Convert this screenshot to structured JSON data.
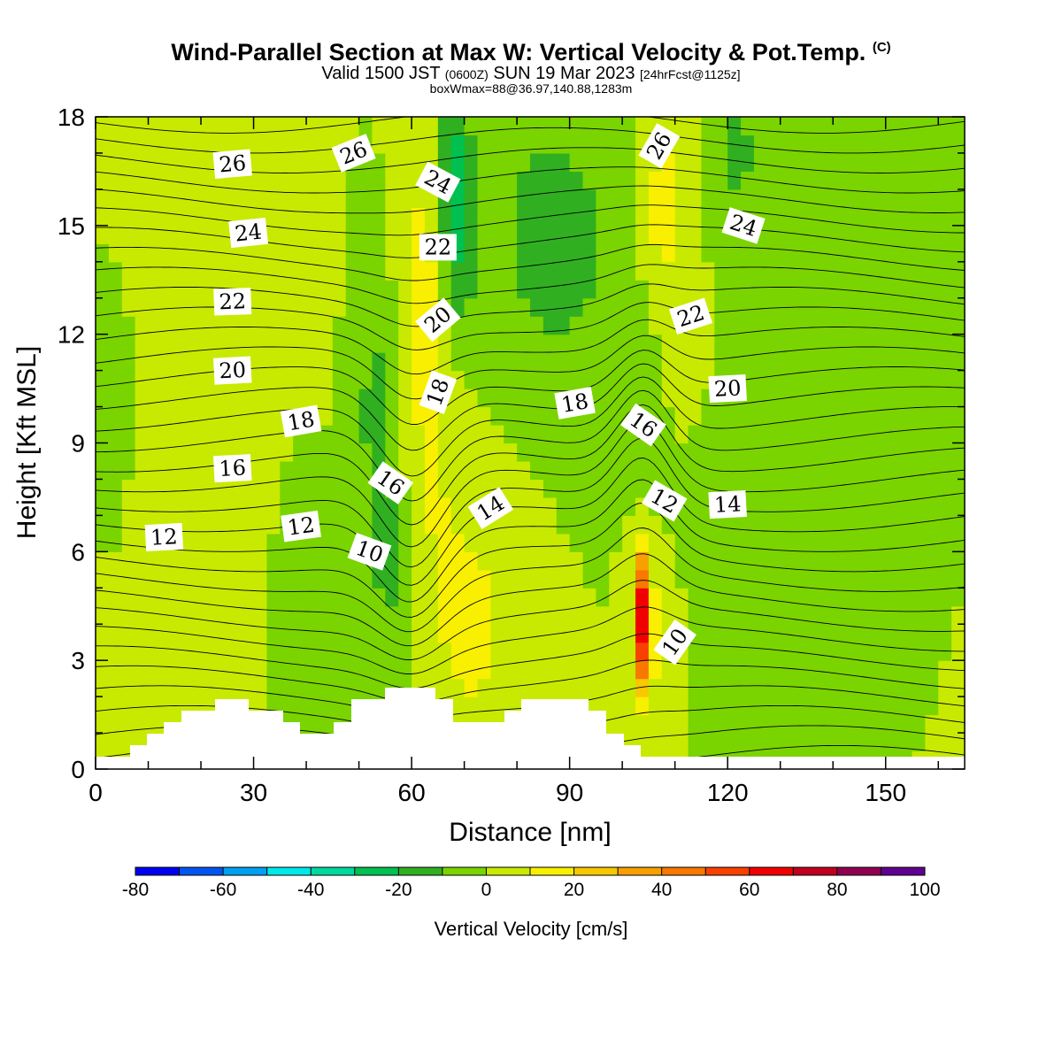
{
  "header": {
    "title": "Wind-Parallel Section at Max W: Vertical Velocity & Pot.Temp.",
    "copyright_mark": "(C)",
    "valid_prefix": "Valid 1500 JST",
    "valid_utc": "(0600Z)",
    "valid_date": "SUN 19 Mar 2023",
    "forecast": "[24hrFcst@1125z]",
    "box_info": "boxWmax=88@36.97,140.88,1283m"
  },
  "colors": {
    "scale": [
      "#0000f0",
      "#0055f0",
      "#00a0f0",
      "#00e8e8",
      "#00d8a0",
      "#00c050",
      "#30b020",
      "#7ad400",
      "#c8ea00",
      "#f8f000",
      "#f8c800",
      "#f8a000",
      "#f87800",
      "#f84000",
      "#f00000",
      "#c00020",
      "#900050",
      "#600090"
    ],
    "terrain": "#ffffff"
  },
  "chart_data": {
    "type": "contour",
    "xlabel": "Distance [nm]",
    "ylabel": "Height [Kft MSL]",
    "xlim": [
      0,
      165
    ],
    "ylim": [
      0,
      18
    ],
    "x_ticks": [
      "0",
      "30",
      "60",
      "90",
      "120",
      "150"
    ],
    "y_ticks": [
      "0",
      "3",
      "6",
      "9",
      "12",
      "15",
      "18"
    ],
    "colorbar": {
      "label": "Vertical Velocity [cm/s]",
      "range": [
        -80,
        100
      ],
      "interval": 10,
      "tick_labels": [
        "-80",
        "-60",
        "-40",
        "-20",
        "0",
        "20",
        "40",
        "60",
        "80",
        "100"
      ]
    },
    "contour_labels": [
      {
        "text": "26",
        "x": 26,
        "y": 16.7,
        "rot": -5
      },
      {
        "text": "26",
        "x": 49,
        "y": 17.0,
        "rot": -22
      },
      {
        "text": "24",
        "x": 65,
        "y": 16.2,
        "rot": 28
      },
      {
        "text": "26",
        "x": 107,
        "y": 17.2,
        "rot": -60
      },
      {
        "text": "24",
        "x": 29,
        "y": 14.8,
        "rot": -6
      },
      {
        "text": "24",
        "x": 123,
        "y": 15.0,
        "rot": 18
      },
      {
        "text": "22",
        "x": 65,
        "y": 14.4,
        "rot": 0
      },
      {
        "text": "22",
        "x": 26,
        "y": 12.9,
        "rot": -2
      },
      {
        "text": "22",
        "x": 113,
        "y": 12.5,
        "rot": -18
      },
      {
        "text": "20",
        "x": 65,
        "y": 12.4,
        "rot": -40
      },
      {
        "text": "20",
        "x": 26,
        "y": 11.0,
        "rot": -3
      },
      {
        "text": "20",
        "x": 120,
        "y": 10.5,
        "rot": -3
      },
      {
        "text": "18",
        "x": 39,
        "y": 9.6,
        "rot": -10
      },
      {
        "text": "18",
        "x": 65,
        "y": 10.4,
        "rot": -70
      },
      {
        "text": "18",
        "x": 91,
        "y": 10.1,
        "rot": -10
      },
      {
        "text": "16",
        "x": 104,
        "y": 9.5,
        "rot": 35
      },
      {
        "text": "16",
        "x": 26,
        "y": 8.3,
        "rot": -3
      },
      {
        "text": "16",
        "x": 56,
        "y": 7.9,
        "rot": 35
      },
      {
        "text": "14",
        "x": 75,
        "y": 7.2,
        "rot": -32
      },
      {
        "text": "14",
        "x": 120,
        "y": 7.3,
        "rot": -3
      },
      {
        "text": "12",
        "x": 13,
        "y": 6.4,
        "rot": -3
      },
      {
        "text": "12",
        "x": 39,
        "y": 6.7,
        "rot": -8
      },
      {
        "text": "12",
        "x": 108,
        "y": 7.4,
        "rot": 30
      },
      {
        "text": "10",
        "x": 52,
        "y": 6.0,
        "rot": 20
      },
      {
        "text": "10",
        "x": 110,
        "y": 3.5,
        "rot": -55
      }
    ]
  }
}
